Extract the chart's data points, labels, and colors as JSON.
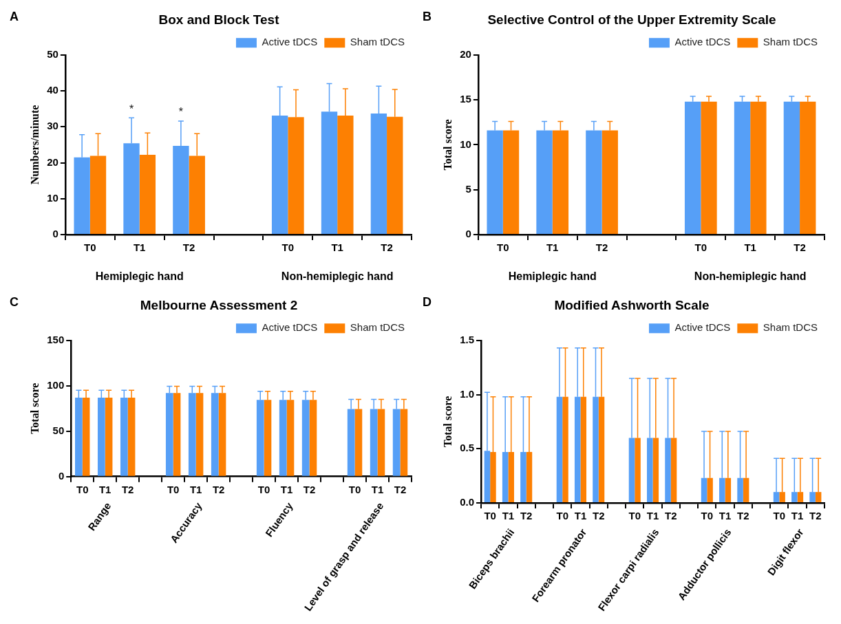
{
  "chart_data": [
    {
      "type": "bar",
      "title": "Box and Block Test",
      "ylabel": "Numbers/minute",
      "categories": [
        "T0",
        "T1",
        "T2",
        null,
        "T0",
        "T1",
        "T2"
      ],
      "ylim": [
        0,
        50
      ],
      "yticks": [
        0,
        10,
        20,
        30,
        40,
        50
      ],
      "grid": false,
      "legend": "top right",
      "annotations": [
        "A",
        "Hemiplegic hand",
        "Non-hemiplegic hand"
      ],
      "series": [
        {
          "name": "Active tDCS",
          "color": "#569ff7",
          "values": [
            21.5,
            25.4,
            24.7,
            null,
            33.1,
            34.2,
            33.7
          ],
          "errors": [
            [
              21.5,
              27.8
            ],
            [
              25.4,
              32.5
            ],
            [
              24.7,
              31.6
            ],
            null,
            [
              33.1,
              41.1
            ],
            [
              34.2,
              42.0
            ],
            [
              33.7,
              41.3
            ]
          ],
          "value_labels": [
            null,
            "*",
            "*",
            null,
            null,
            null,
            null
          ]
        },
        {
          "name": "Sham tDCS",
          "color": "#fd8002",
          "values": [
            21.9,
            22.2,
            21.9,
            null,
            32.7,
            33.1,
            32.8
          ],
          "errors": [
            [
              21.9,
              28.1
            ],
            [
              22.2,
              28.3
            ],
            [
              21.9,
              28.1
            ],
            null,
            [
              32.7,
              40.3
            ],
            [
              33.1,
              40.6
            ],
            [
              32.8,
              40.4
            ]
          ]
        }
      ]
    },
    {
      "type": "bar",
      "title": "Selective Control of the Upper Extremity Scale",
      "ylabel": "Total score",
      "categories": [
        "T0",
        "T1",
        "T2",
        null,
        "T0",
        "T1",
        "T2"
      ],
      "ylim": [
        0,
        20
      ],
      "yticks": [
        0,
        5,
        10,
        15,
        20
      ],
      "grid": false,
      "legend": "top right",
      "annotations": [
        "B",
        "Hemiplegic hand",
        "Non-hemiplegic hand"
      ],
      "series": [
        {
          "name": "Active tDCS",
          "color": "#569ff7",
          "values": [
            11.6,
            11.6,
            11.6,
            null,
            14.8,
            14.8,
            14.8
          ],
          "errors": [
            [
              11.6,
              12.6
            ],
            [
              11.6,
              12.6
            ],
            [
              11.6,
              12.6
            ],
            null,
            [
              14.8,
              15.4
            ],
            [
              14.8,
              15.4
            ],
            [
              14.8,
              15.4
            ]
          ]
        },
        {
          "name": "Sham tDCS",
          "color": "#fd8002",
          "values": [
            11.6,
            11.6,
            11.6,
            null,
            14.8,
            14.8,
            14.8
          ],
          "errors": [
            [
              11.6,
              12.6
            ],
            [
              11.6,
              12.6
            ],
            [
              11.6,
              12.6
            ],
            null,
            [
              14.8,
              15.4
            ],
            [
              14.8,
              15.4
            ],
            [
              14.8,
              15.4
            ]
          ]
        }
      ]
    },
    {
      "type": "bar",
      "title": "Melbourne Assessment 2",
      "ylabel": "Total score",
      "categories": [
        "T0",
        "T1",
        "T2",
        null,
        "T0",
        "T1",
        "T2",
        null,
        "T0",
        "T1",
        "T2",
        null,
        "T0",
        "T1",
        "T2"
      ],
      "ylim": [
        0,
        150
      ],
      "yticks": [
        0,
        50,
        100,
        150
      ],
      "grid": false,
      "legend": "top right",
      "annotations": [
        "C",
        "Range",
        "Accuracy",
        "Fluency",
        "Level of grasp and release"
      ],
      "series": [
        {
          "name": "Active tDCS",
          "color": "#569ff7",
          "values": [
            87,
            87,
            87,
            null,
            92,
            92,
            92,
            null,
            84.5,
            84.5,
            84.5,
            null,
            74.5,
            74.5,
            74.5
          ],
          "errors": [
            [
              87,
              95
            ],
            [
              87,
              95
            ],
            [
              87,
              95
            ],
            null,
            [
              92,
              99.5
            ],
            [
              92,
              99.5
            ],
            [
              92,
              99.5
            ],
            null,
            [
              84.5,
              94
            ],
            [
              84.5,
              94
            ],
            [
              84.5,
              94
            ],
            null,
            [
              74.5,
              85
            ],
            [
              74.5,
              85
            ],
            [
              74.5,
              85
            ]
          ]
        },
        {
          "name": "Sham tDCS",
          "color": "#fd8002",
          "values": [
            87,
            87,
            87,
            null,
            92,
            92,
            92,
            null,
            84.5,
            84.5,
            84.5,
            null,
            74.5,
            74.5,
            74.5
          ],
          "errors": [
            [
              87,
              95
            ],
            [
              87,
              95
            ],
            [
              87,
              95
            ],
            null,
            [
              92,
              99.5
            ],
            [
              92,
              99.5
            ],
            [
              92,
              99.5
            ],
            null,
            [
              84.5,
              94
            ],
            [
              84.5,
              94
            ],
            [
              84.5,
              94
            ],
            null,
            [
              74.5,
              85
            ],
            [
              74.5,
              85
            ],
            [
              74.5,
              85
            ]
          ]
        }
      ]
    },
    {
      "type": "bar",
      "title": "Modified Ashworth Scale",
      "ylabel": "Total score",
      "categories": [
        "T0",
        "T1",
        "T2",
        null,
        "T0",
        "T1",
        "T2",
        null,
        "T0",
        "T1",
        "T2",
        null,
        "T0",
        "T1",
        "T2",
        null,
        "T0",
        "T1",
        "T2"
      ],
      "ylim": [
        0,
        1.5
      ],
      "yticks": [
        {
          "value": 0,
          "label": "0.0"
        },
        {
          "value": 0.5,
          "label": "0.5"
        },
        {
          "value": 1,
          "label": "1.0"
        },
        {
          "value": 1.5,
          "label": "1.5"
        }
      ],
      "grid": false,
      "legend": "top right",
      "annotations": [
        "D",
        "Biceps brachii",
        "Forearm pronator",
        "Flexor carpi radialis",
        "Adductor pollicis",
        "Digit flexor"
      ],
      "series": [
        {
          "name": "Active tDCS",
          "color": "#569ff7",
          "values": [
            0.48,
            0.47,
            0.47,
            null,
            0.98,
            0.98,
            0.98,
            null,
            0.6,
            0.6,
            0.6,
            null,
            0.23,
            0.23,
            0.23,
            null,
            0.1,
            0.1,
            0.1
          ],
          "errors": [
            [
              0.48,
              1.02
            ],
            [
              0.47,
              0.98
            ],
            [
              0.47,
              0.98
            ],
            null,
            [
              0.98,
              1.43
            ],
            [
              0.98,
              1.43
            ],
            [
              0.98,
              1.43
            ],
            null,
            [
              0.6,
              1.15
            ],
            [
              0.6,
              1.15
            ],
            [
              0.6,
              1.15
            ],
            null,
            [
              0.23,
              0.66
            ],
            [
              0.23,
              0.66
            ],
            [
              0.23,
              0.66
            ],
            null,
            [
              0.1,
              0.41
            ],
            [
              0.1,
              0.41
            ],
            [
              0.1,
              0.41
            ]
          ]
        },
        {
          "name": "Sham tDCS",
          "color": "#fd8002",
          "values": [
            0.47,
            0.47,
            0.47,
            null,
            0.98,
            0.98,
            0.98,
            null,
            0.6,
            0.6,
            0.6,
            null,
            0.23,
            0.23,
            0.23,
            null,
            0.1,
            0.1,
            0.1
          ],
          "errors": [
            [
              0.47,
              0.98
            ],
            [
              0.47,
              0.98
            ],
            [
              0.47,
              0.98
            ],
            null,
            [
              0.98,
              1.43
            ],
            [
              0.98,
              1.43
            ],
            [
              0.98,
              1.43
            ],
            null,
            [
              0.6,
              1.15
            ],
            [
              0.6,
              1.15
            ],
            [
              0.6,
              1.15
            ],
            null,
            [
              0.23,
              0.66
            ],
            [
              0.23,
              0.66
            ],
            [
              0.23,
              0.66
            ],
            null,
            [
              0.1,
              0.41
            ],
            [
              0.1,
              0.41
            ],
            [
              0.1,
              0.41
            ]
          ]
        }
      ]
    }
  ]
}
